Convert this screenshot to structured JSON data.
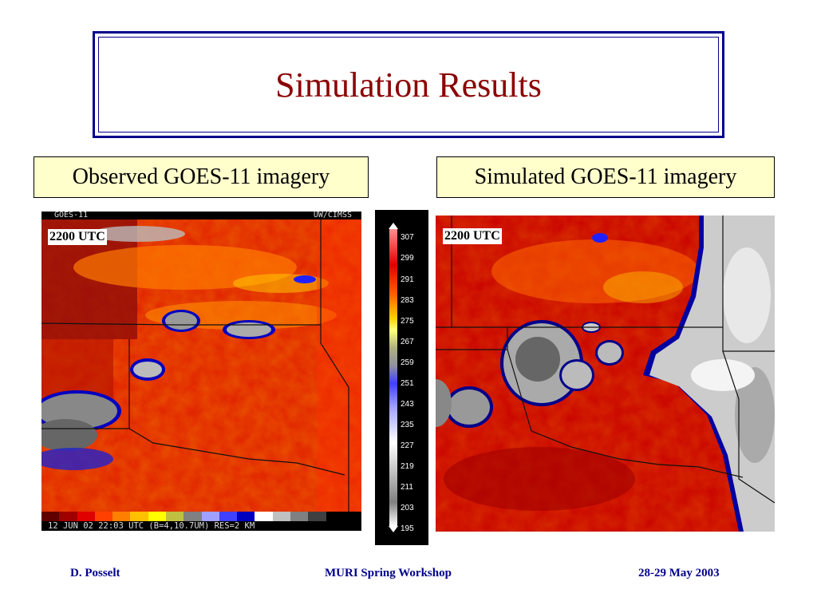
{
  "slide": {
    "title": "Simulation Results",
    "observed_label": "Observed GOES-11 imagery",
    "simulated_label": "Simulated GOES-11 imagery"
  },
  "observed_panel": {
    "header_left": "GOES-11",
    "header_right": "UW/CIMSS",
    "time_label": "2200 UTC",
    "caption": "12 JUN 02 22:03 UTC (B=4,10.7UM) RES=2 KM"
  },
  "simulated_panel": {
    "time_label": "2200 UTC"
  },
  "legend": {
    "ticks": [
      "307",
      "299",
      "291",
      "283",
      "275",
      "267",
      "259",
      "251",
      "243",
      "235",
      "227",
      "219",
      "211",
      "203",
      "195"
    ]
  },
  "footer": {
    "author": "D. Posselt",
    "event": "MURI Spring Workshop",
    "date": "28-29 May 2003"
  },
  "colors": {
    "title": "#8b0000",
    "border": "#00008b",
    "label_bg": "#ffffcc",
    "footer": "#00008b"
  }
}
